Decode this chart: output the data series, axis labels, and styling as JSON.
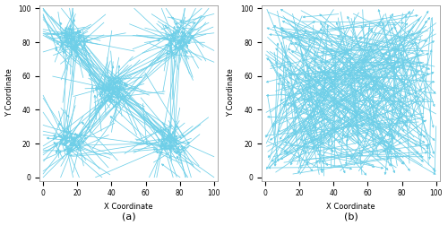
{
  "xlim": [
    -2,
    102
  ],
  "ylim": [
    -2,
    102
  ],
  "xlabel": "X Coordinate",
  "ylabel": "Y Coordinate",
  "label_a": "(a)",
  "label_b": "(b)",
  "line_color": "#6ecfe8",
  "background": "white",
  "n_clustered": 350,
  "n_irregular": 350,
  "cluster_centers_a": [
    [
      15,
      82
    ],
    [
      80,
      82
    ],
    [
      40,
      52
    ],
    [
      75,
      20
    ],
    [
      15,
      20
    ]
  ],
  "cluster_spread": 8,
  "seed_a": 7,
  "seed_b": 13,
  "linewidth": 0.55,
  "alpha": 0.85,
  "xticks": [
    0,
    20,
    40,
    60,
    80,
    100
  ],
  "yticks": [
    0,
    20,
    40,
    60,
    80,
    100
  ],
  "tick_fontsize": 5.5,
  "label_fontsize": 6,
  "subplot_label_fontsize": 8
}
